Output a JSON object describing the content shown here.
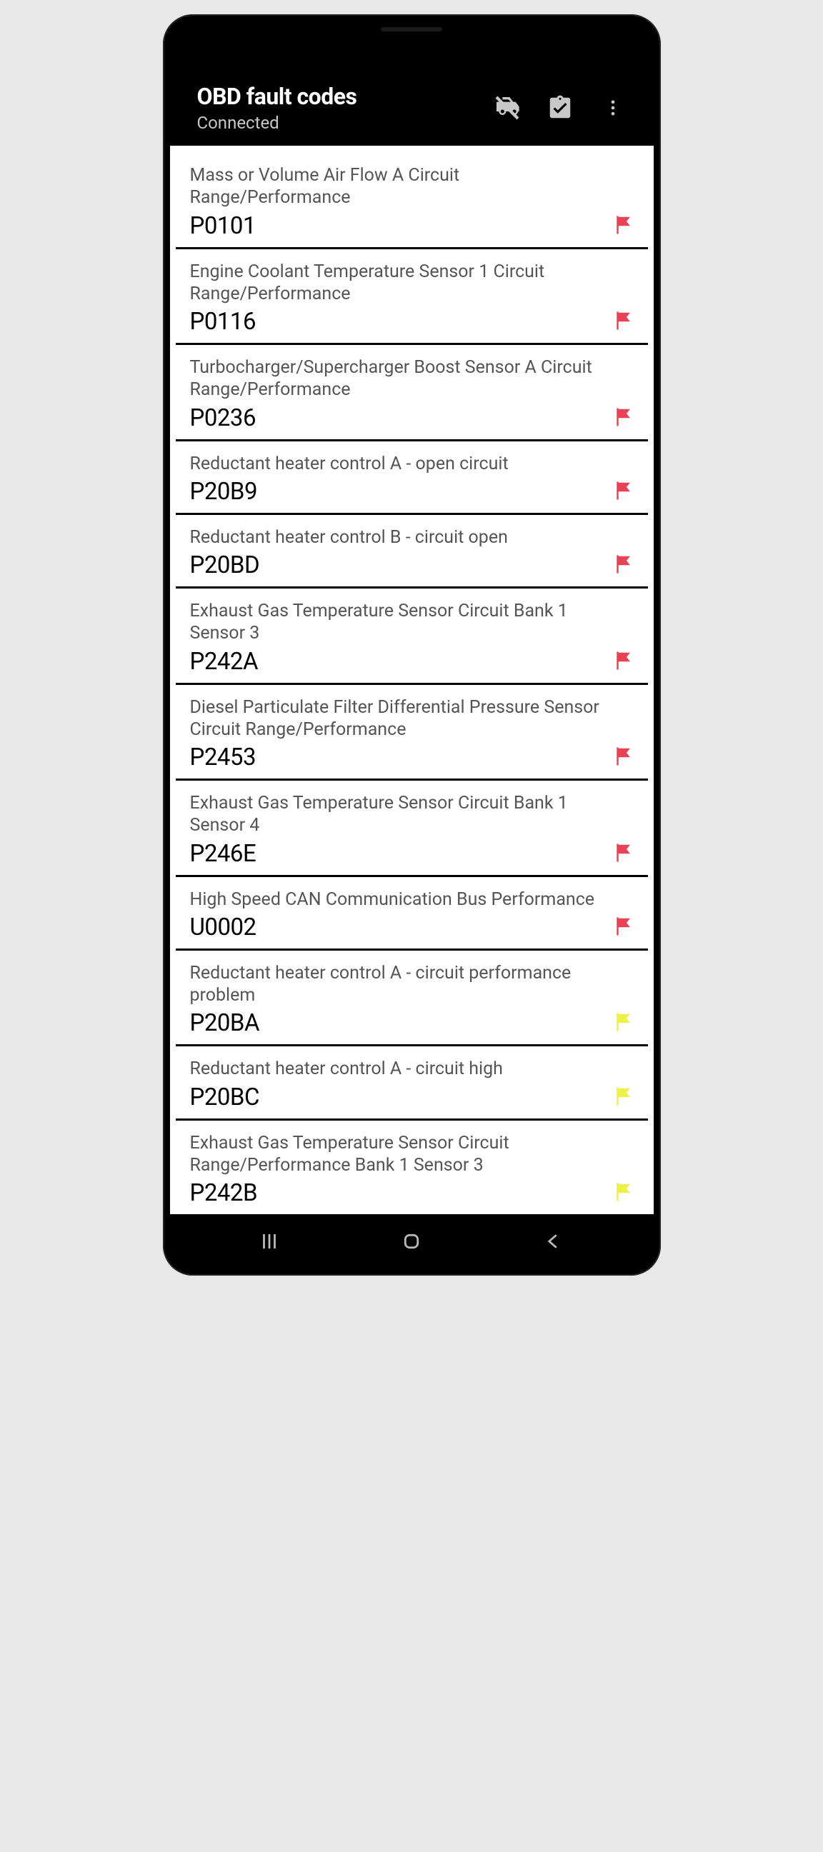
{
  "header": {
    "title": "OBD fault codes",
    "subtitle": "Connected"
  },
  "colors": {
    "flag_red": "#e84257",
    "flag_yellow": "#eef04a",
    "header_bg": "#000000",
    "content_bg": "#ffffff",
    "desc_text": "#555555",
    "code_text": "#000000",
    "icon_fill": "#c8c8c8",
    "divider": "#000000"
  },
  "faults": [
    {
      "desc": "Mass or Volume Air Flow A Circuit Range/Performance",
      "code": "P0101",
      "flag": "red"
    },
    {
      "desc": "Engine Coolant Temperature Sensor 1 Circuit Range/Performance",
      "code": "P0116",
      "flag": "red"
    },
    {
      "desc": "Turbocharger/Supercharger Boost Sensor A Circuit Range/Performance",
      "code": "P0236",
      "flag": "red"
    },
    {
      "desc": "Reductant heater control A - open circuit",
      "code": "P20B9",
      "flag": "red"
    },
    {
      "desc": "Reductant heater control B - circuit open",
      "code": "P20BD",
      "flag": "red"
    },
    {
      "desc": "Exhaust Gas Temperature Sensor Circuit Bank 1 Sensor 3",
      "code": "P242A",
      "flag": "red"
    },
    {
      "desc": "Diesel Particulate Filter Differential Pressure Sensor Circuit Range/Performance",
      "code": "P2453",
      "flag": "red"
    },
    {
      "desc": "Exhaust Gas Temperature Sensor Circuit Bank 1 Sensor 4",
      "code": "P246E",
      "flag": "red"
    },
    {
      "desc": "High Speed CAN Communication Bus Performance",
      "code": "U0002",
      "flag": "red"
    },
    {
      "desc": "Reductant heater control A - circuit performance problem",
      "code": "P20BA",
      "flag": "yellow"
    },
    {
      "desc": "Reductant heater control A - circuit high",
      "code": "P20BC",
      "flag": "yellow"
    },
    {
      "desc": "Exhaust Gas Temperature Sensor Circuit Range/Performance Bank 1 Sensor 3",
      "code": "P242B",
      "flag": "yellow"
    }
  ]
}
